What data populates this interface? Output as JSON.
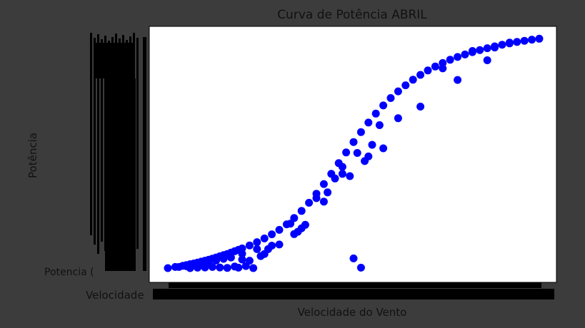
{
  "chart_data": {
    "type": "scatter",
    "title": "Curva de Potência ABRIL",
    "xlabel": "Velocidade do Vento",
    "ylabel": "Potência",
    "first_ytick_label": "Potencia (",
    "first_xtick_label": "Velocidade",
    "xlim": [
      0,
      100
    ],
    "ylim": [
      0,
      100
    ],
    "grid": false,
    "marker_color": "#0000ff",
    "series": [
      {
        "x": [
          0,
          2,
          4,
          5,
          6,
          7,
          8,
          9,
          10,
          11,
          12,
          13,
          14,
          15,
          16,
          17,
          18,
          19,
          20,
          22,
          24,
          26,
          28,
          30,
          32,
          34,
          36,
          38,
          40,
          42,
          44,
          46,
          48,
          50,
          52,
          54,
          56,
          58,
          60,
          62,
          64,
          66,
          68,
          70,
          72,
          74,
          76,
          78,
          80,
          82,
          84,
          86,
          88,
          90,
          92,
          94,
          96,
          98,
          100,
          6,
          8,
          10,
          12,
          14,
          16,
          18,
          19,
          20,
          21,
          22,
          23,
          25,
          27,
          30,
          33,
          35,
          37,
          40,
          42,
          45,
          47,
          49,
          50,
          51,
          52,
          54,
          57,
          58,
          62,
          68,
          78,
          86,
          3,
          5,
          9,
          11,
          13,
          15,
          17,
          20,
          24,
          26,
          28,
          34,
          36,
          43,
          47,
          53,
          55,
          74,
          82,
          88,
          92
        ],
        "y": [
          0.3,
          0.8,
          1.3,
          1.6,
          2.0,
          2.3,
          2.7,
          3.1,
          3.5,
          3.9,
          4.4,
          4.9,
          5.4,
          5.9,
          6.4,
          7.0,
          7.6,
          8.2,
          8.8,
          10.1,
          11.5,
          13.1,
          14.9,
          16.8,
          19.2,
          21.9,
          25.0,
          28.5,
          32.4,
          36.6,
          41.0,
          45.6,
          50.2,
          54.7,
          59.0,
          63.1,
          67.0,
          70.5,
          73.7,
          76.6,
          79.2,
          81.6,
          83.7,
          85.6,
          87.3,
          88.8,
          90.2,
          91.4,
          92.5,
          93.5,
          94.4,
          95.2,
          96.0,
          96.7,
          97.3,
          97.9,
          98.4,
          98.9,
          99.3,
          0.3,
          0.5,
          0.6,
          0.8,
          0.6,
          0.4,
          1.0,
          0.5,
          4.0,
          1.2,
          3.5,
          0.3,
          5.5,
          8.5,
          10.5,
          19.5,
          16.0,
          19.0,
          30.5,
          29.0,
          39.0,
          44.0,
          40.0,
          4.5,
          50.0,
          0.5,
          48.5,
          62.0,
          52.0,
          65.0,
          70.0,
          81.5,
          90.0,
          0.8,
          1.1,
          2.4,
          2.9,
          3.6,
          4.3,
          4.9,
          6.5,
          8.5,
          6.4,
          10.0,
          15.0,
          17.5,
          33.0,
          41.0,
          46.5,
          53.5,
          86.5,
          94.0,
          95.5,
          97.6
        ]
      }
    ]
  }
}
